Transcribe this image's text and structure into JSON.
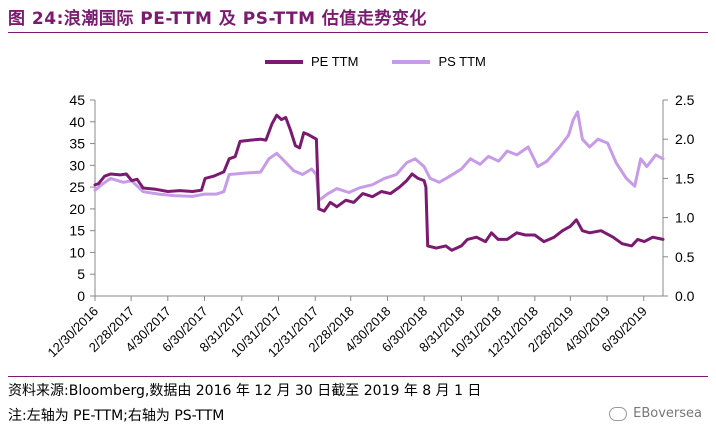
{
  "header": {
    "title": "图 24:浪潮国际 PE-TTM 及 PS-TTM 估值走势变化"
  },
  "footer": {
    "source": "资料来源:Bloomberg,数据由 2016 年 12 月 30 日截至 2019 年 8 月 1 日",
    "note": "注:左轴为 PE-TTM;右轴为 PS-TTM",
    "watermark": "EBoversea"
  },
  "colors": {
    "pe": "#7b1a70",
    "ps": "#c79be8",
    "title": "#7b1a70"
  },
  "chart_data": {
    "type": "line",
    "legend_position": "top-center",
    "grid": false,
    "x_range": [
      "2016-12-30",
      "2019-08-01"
    ],
    "x_tick_labels": [
      "12/30/2016",
      "2/28/2017",
      "4/30/2017",
      "6/30/2017",
      "8/31/2017",
      "10/31/2017",
      "12/31/2017",
      "2/28/2018",
      "4/30/2018",
      "6/30/2018",
      "8/31/2018",
      "10/31/2018",
      "12/31/2018",
      "2/28/2019",
      "4/30/2019",
      "6/30/2019"
    ],
    "x_tick_dates": [
      "2016-12-30",
      "2017-02-28",
      "2017-04-30",
      "2017-06-30",
      "2017-08-31",
      "2017-10-31",
      "2017-12-31",
      "2018-02-28",
      "2018-04-30",
      "2018-06-30",
      "2018-08-31",
      "2018-10-31",
      "2018-12-31",
      "2019-02-28",
      "2019-04-30",
      "2019-06-30"
    ],
    "y_left": {
      "range": [
        0,
        45
      ],
      "ticks": [
        0,
        5,
        10,
        15,
        20,
        25,
        30,
        35,
        40,
        45
      ],
      "tick_labels": [
        "0",
        "5",
        "10",
        "15",
        "20",
        "25",
        "30",
        "35",
        "40",
        "45"
      ]
    },
    "y_right": {
      "range": [
        0,
        2.5
      ],
      "ticks": [
        0,
        0.5,
        1,
        1.5,
        2,
        2.5
      ],
      "tick_labels": [
        "0.0",
        "0.5",
        "1.0",
        "1.5",
        "2.0",
        "2.5"
      ]
    },
    "series": [
      {
        "name": "PE TTM",
        "axis": "left",
        "points": [
          [
            "2016-12-30",
            25.5
          ],
          [
            "2017-01-05",
            25.8
          ],
          [
            "2017-01-15",
            27.5
          ],
          [
            "2017-01-25",
            28.0
          ],
          [
            "2017-02-10",
            27.8
          ],
          [
            "2017-02-20",
            28.0
          ],
          [
            "2017-03-01",
            26.5
          ],
          [
            "2017-03-10",
            26.8
          ],
          [
            "2017-03-20",
            24.8
          ],
          [
            "2017-04-10",
            24.5
          ],
          [
            "2017-04-30",
            24.0
          ],
          [
            "2017-05-20",
            24.2
          ],
          [
            "2017-06-10",
            24.0
          ],
          [
            "2017-06-25",
            24.3
          ],
          [
            "2017-07-01",
            27.0
          ],
          [
            "2017-07-15",
            27.5
          ],
          [
            "2017-08-01",
            28.5
          ],
          [
            "2017-08-10",
            31.5
          ],
          [
            "2017-08-20",
            32.0
          ],
          [
            "2017-08-28",
            35.5
          ],
          [
            "2017-09-15",
            35.8
          ],
          [
            "2017-10-01",
            36.0
          ],
          [
            "2017-10-10",
            35.8
          ],
          [
            "2017-10-20",
            39.5
          ],
          [
            "2017-10-28",
            41.5
          ],
          [
            "2017-11-05",
            40.5
          ],
          [
            "2017-11-12",
            41.0
          ],
          [
            "2017-11-20",
            38.0
          ],
          [
            "2017-11-28",
            34.5
          ],
          [
            "2017-12-05",
            34.0
          ],
          [
            "2017-12-12",
            37.5
          ],
          [
            "2017-12-20",
            37.0
          ],
          [
            "2018-01-02",
            36.0
          ],
          [
            "2018-01-06",
            20.0
          ],
          [
            "2018-01-15",
            19.5
          ],
          [
            "2018-01-25",
            21.5
          ],
          [
            "2018-02-05",
            20.5
          ],
          [
            "2018-02-20",
            22.0
          ],
          [
            "2018-03-05",
            21.5
          ],
          [
            "2018-03-20",
            23.5
          ],
          [
            "2018-04-05",
            22.8
          ],
          [
            "2018-04-20",
            24.0
          ],
          [
            "2018-05-05",
            23.5
          ],
          [
            "2018-05-20",
            25.0
          ],
          [
            "2018-06-01",
            26.5
          ],
          [
            "2018-06-10",
            28.0
          ],
          [
            "2018-06-20",
            27.0
          ],
          [
            "2018-06-30",
            26.5
          ],
          [
            "2018-07-03",
            25.0
          ],
          [
            "2018-07-06",
            11.5
          ],
          [
            "2018-07-20",
            11.0
          ],
          [
            "2018-08-05",
            11.5
          ],
          [
            "2018-08-15",
            10.5
          ],
          [
            "2018-08-31",
            11.5
          ],
          [
            "2018-09-10",
            13.0
          ],
          [
            "2018-09-25",
            13.5
          ],
          [
            "2018-10-10",
            12.5
          ],
          [
            "2018-10-20",
            14.5
          ],
          [
            "2018-10-31",
            13.0
          ],
          [
            "2018-11-15",
            13.0
          ],
          [
            "2018-12-01",
            14.5
          ],
          [
            "2018-12-15",
            14.0
          ],
          [
            "2018-12-31",
            14.0
          ],
          [
            "2019-01-15",
            12.5
          ],
          [
            "2019-02-01",
            13.5
          ],
          [
            "2019-02-15",
            15.0
          ],
          [
            "2019-02-28",
            16.0
          ],
          [
            "2019-03-10",
            17.5
          ],
          [
            "2019-03-20",
            15.0
          ],
          [
            "2019-04-01",
            14.5
          ],
          [
            "2019-04-20",
            15.0
          ],
          [
            "2019-05-10",
            13.5
          ],
          [
            "2019-05-25",
            12.0
          ],
          [
            "2019-06-10",
            11.5
          ],
          [
            "2019-06-20",
            13.0
          ],
          [
            "2019-07-01",
            12.5
          ],
          [
            "2019-07-15",
            13.5
          ],
          [
            "2019-08-01",
            13.0
          ]
        ]
      },
      {
        "name": "PS TTM",
        "axis": "right",
        "points": [
          [
            "2016-12-30",
            1.35
          ],
          [
            "2017-01-10",
            1.42
          ],
          [
            "2017-01-25",
            1.5
          ],
          [
            "2017-02-15",
            1.45
          ],
          [
            "2017-03-01",
            1.47
          ],
          [
            "2017-03-20",
            1.33
          ],
          [
            "2017-04-15",
            1.3
          ],
          [
            "2017-05-10",
            1.28
          ],
          [
            "2017-06-10",
            1.27
          ],
          [
            "2017-06-30",
            1.3
          ],
          [
            "2017-07-20",
            1.3
          ],
          [
            "2017-08-01",
            1.33
          ],
          [
            "2017-08-10",
            1.55
          ],
          [
            "2017-09-10",
            1.57
          ],
          [
            "2017-10-01",
            1.58
          ],
          [
            "2017-10-15",
            1.75
          ],
          [
            "2017-10-28",
            1.82
          ],
          [
            "2017-11-10",
            1.72
          ],
          [
            "2017-11-25",
            1.6
          ],
          [
            "2017-12-10",
            1.55
          ],
          [
            "2017-12-25",
            1.62
          ],
          [
            "2018-01-02",
            1.55
          ],
          [
            "2018-01-06",
            1.22
          ],
          [
            "2018-01-20",
            1.3
          ],
          [
            "2018-02-05",
            1.37
          ],
          [
            "2018-02-25",
            1.32
          ],
          [
            "2018-03-15",
            1.38
          ],
          [
            "2018-04-05",
            1.42
          ],
          [
            "2018-04-25",
            1.5
          ],
          [
            "2018-05-15",
            1.55
          ],
          [
            "2018-06-01",
            1.7
          ],
          [
            "2018-06-15",
            1.75
          ],
          [
            "2018-06-30",
            1.65
          ],
          [
            "2018-07-10",
            1.5
          ],
          [
            "2018-07-25",
            1.45
          ],
          [
            "2018-08-10",
            1.52
          ],
          [
            "2018-08-31",
            1.62
          ],
          [
            "2018-09-15",
            1.75
          ],
          [
            "2018-10-01",
            1.68
          ],
          [
            "2018-10-15",
            1.78
          ],
          [
            "2018-11-01",
            1.72
          ],
          [
            "2018-11-15",
            1.85
          ],
          [
            "2018-12-01",
            1.8
          ],
          [
            "2018-12-20",
            1.9
          ],
          [
            "2019-01-05",
            1.65
          ],
          [
            "2019-01-20",
            1.72
          ],
          [
            "2019-02-10",
            1.9
          ],
          [
            "2019-02-25",
            2.05
          ],
          [
            "2019-03-05",
            2.25
          ],
          [
            "2019-03-12",
            2.35
          ],
          [
            "2019-03-20",
            2.0
          ],
          [
            "2019-04-01",
            1.9
          ],
          [
            "2019-04-15",
            2.0
          ],
          [
            "2019-05-01",
            1.95
          ],
          [
            "2019-05-15",
            1.7
          ],
          [
            "2019-06-01",
            1.5
          ],
          [
            "2019-06-15",
            1.4
          ],
          [
            "2019-06-25",
            1.75
          ],
          [
            "2019-07-05",
            1.65
          ],
          [
            "2019-07-20",
            1.8
          ],
          [
            "2019-08-01",
            1.75
          ]
        ]
      }
    ]
  }
}
